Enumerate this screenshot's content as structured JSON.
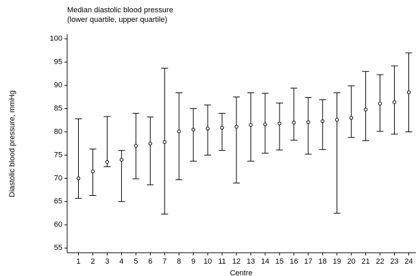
{
  "chart_data": {
    "type": "errorbar",
    "title": "Median diastolic blood pressure",
    "subtitle": "(lower quartile, upper quartile)",
    "x_label": "Centre",
    "y_label": "Diastolic blood pressure, mmHg",
    "categories": [
      "1",
      "2",
      "3",
      "4",
      "5",
      "6",
      "7",
      "8",
      "9",
      "10",
      "11",
      "12",
      "13",
      "14",
      "15",
      "16",
      "17",
      "18",
      "19",
      "20",
      "21",
      "22",
      "23",
      "24"
    ],
    "values": [
      70,
      71.5,
      73.5,
      74,
      77,
      77.5,
      77.8,
      80.1,
      80.5,
      80.7,
      80.9,
      81.1,
      81.5,
      81.6,
      81.8,
      82,
      82.1,
      82.3,
      82.6,
      83,
      84.8,
      86.1,
      86.4,
      88.5
    ],
    "lower": [
      65.7,
      66.3,
      72.5,
      65,
      69.9,
      68.6,
      62.3,
      69.7,
      73.7,
      75,
      76,
      69,
      73.7,
      75.4,
      76.1,
      78.2,
      75.2,
      76.2,
      62.5,
      78.8,
      78.1,
      80.1,
      79.5,
      80
    ],
    "upper": [
      82.8,
      76.3,
      83.3,
      76,
      84,
      83.2,
      93.7,
      88.4,
      85,
      85.8,
      84,
      87.5,
      88.4,
      88.3,
      86.2,
      89.4,
      87.4,
      86.9,
      88.4,
      89.9,
      93,
      92.3,
      94.2,
      97
    ],
    "color": "#000000",
    "ylim": [
      54,
      101
    ],
    "yticks": [
      55,
      60,
      65,
      70,
      75,
      80,
      85,
      90,
      95,
      100
    ]
  }
}
